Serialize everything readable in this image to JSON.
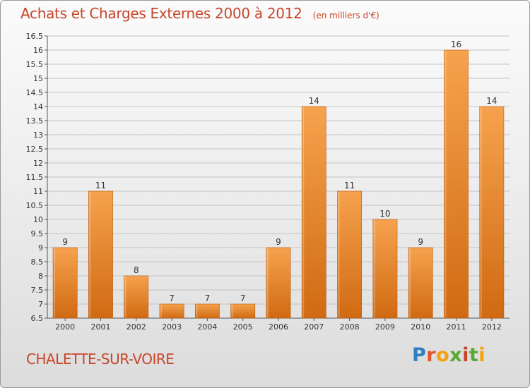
{
  "header": {
    "title": "Achats et Charges Externes 2000 à 2012",
    "unit": "(en milliers d'€)"
  },
  "footer": {
    "commune": "CHALETTE-SUR-VOIRE",
    "logo_text": "Proxiti"
  },
  "colors": {
    "title": "#c8452a",
    "bar_light": "#f6a24e",
    "bar_dark": "#d06a12"
  },
  "chart_data": {
    "type": "bar",
    "title": "Achats et Charges Externes 2000 à 2012",
    "unit": "(en milliers d'€)",
    "xlabel": "",
    "ylabel": "",
    "categories": [
      "2000",
      "2001",
      "2002",
      "2003",
      "2004",
      "2005",
      "2006",
      "2007",
      "2008",
      "2009",
      "2010",
      "2011",
      "2012"
    ],
    "values": [
      9,
      11,
      8,
      7,
      7,
      7,
      9,
      14,
      11,
      10,
      9,
      16,
      14
    ],
    "ylim": [
      6.5,
      16.5
    ],
    "yticks": [
      "6.5",
      "7",
      "7.5",
      "8",
      "8.5",
      "9",
      "9.5",
      "10",
      "10.5",
      "11",
      "11.5",
      "12",
      "12.5",
      "13",
      "13.5",
      "14",
      "14.5",
      "15",
      "15.5",
      "16",
      "16.5"
    ],
    "grid": true,
    "legend": "none"
  }
}
